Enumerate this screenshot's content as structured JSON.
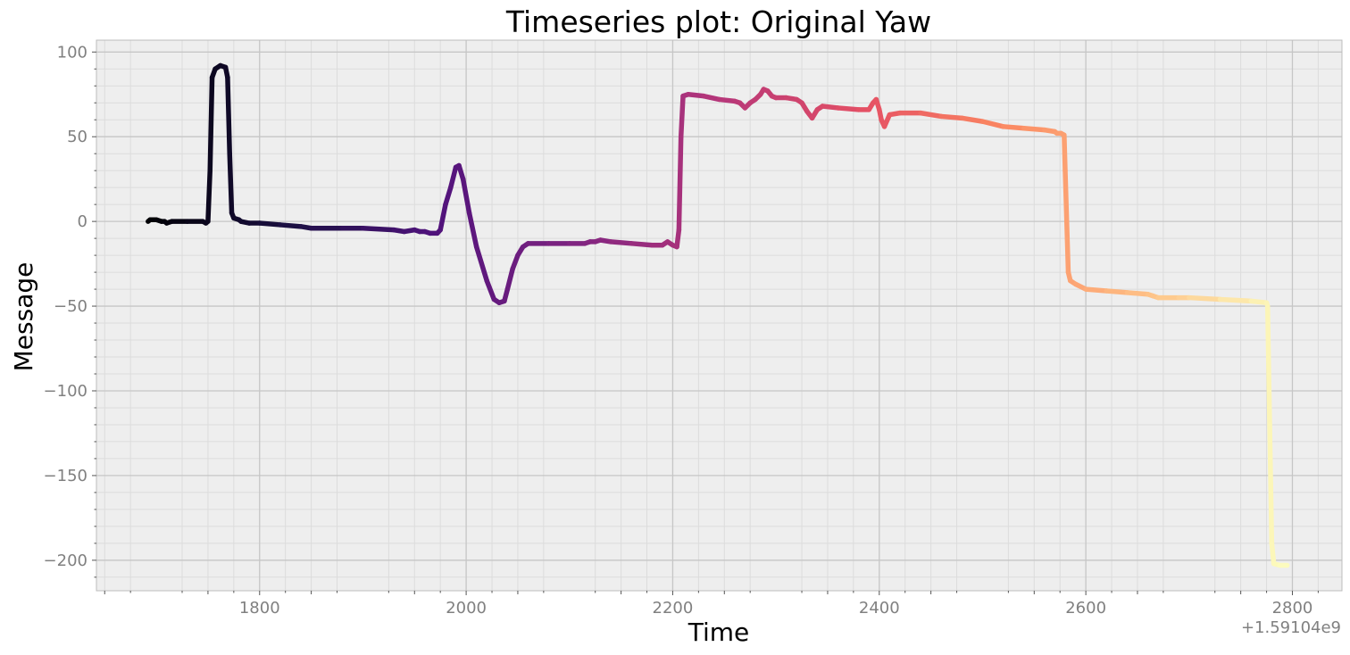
{
  "chart_data": {
    "type": "scatter",
    "title": "Timeseries plot: Original Yaw",
    "xlabel": "Time",
    "ylabel": "Message",
    "x_offset_label": "+1.59104e9",
    "xlim": [
      1642,
      2848
    ],
    "ylim": [
      -218,
      107
    ],
    "x_ticks": [
      1800,
      2000,
      2200,
      2400,
      2600,
      2800
    ],
    "y_ticks": [
      100,
      50,
      0,
      -50,
      -100,
      -150,
      -200
    ],
    "x_tick_labels": [
      "1800",
      "2000",
      "2200",
      "2400",
      "2600",
      "2800"
    ],
    "y_tick_labels": [
      "100",
      "50",
      "0",
      "−50",
      "−100",
      "−150",
      "−200"
    ],
    "grid": true,
    "minor_grid": true,
    "background": "#eeeeee",
    "colormap": "magma",
    "series": [
      {
        "points": [
          [
            1692,
            0
          ],
          [
            1694,
            1
          ],
          [
            1700,
            1
          ],
          [
            1705,
            0
          ],
          [
            1708,
            0
          ],
          [
            1710,
            -1
          ],
          [
            1715,
            0
          ],
          [
            1730,
            0
          ],
          [
            1745,
            0
          ],
          [
            1748,
            -1
          ],
          [
            1750,
            0
          ],
          [
            1752,
            30
          ],
          [
            1754,
            85
          ],
          [
            1757,
            90
          ],
          [
            1762,
            92
          ],
          [
            1767,
            91
          ],
          [
            1769,
            85
          ],
          [
            1771,
            40
          ],
          [
            1773,
            5
          ],
          [
            1775,
            2
          ],
          [
            1780,
            1
          ],
          [
            1782,
            0
          ],
          [
            1790,
            -1
          ],
          [
            1800,
            -1
          ],
          [
            1820,
            -2
          ],
          [
            1840,
            -3
          ],
          [
            1850,
            -4
          ],
          [
            1880,
            -4
          ],
          [
            1900,
            -4
          ],
          [
            1930,
            -5
          ],
          [
            1940,
            -6
          ],
          [
            1950,
            -5
          ],
          [
            1955,
            -6
          ],
          [
            1960,
            -6
          ],
          [
            1965,
            -7
          ],
          [
            1972,
            -7
          ],
          [
            1975,
            -5
          ],
          [
            1980,
            10
          ],
          [
            1985,
            20
          ],
          [
            1990,
            32
          ],
          [
            1993,
            33
          ],
          [
            1997,
            25
          ],
          [
            2003,
            5
          ],
          [
            2010,
            -15
          ],
          [
            2020,
            -35
          ],
          [
            2027,
            -46
          ],
          [
            2032,
            -48
          ],
          [
            2037,
            -47
          ],
          [
            2040,
            -40
          ],
          [
            2045,
            -28
          ],
          [
            2050,
            -20
          ],
          [
            2055,
            -15
          ],
          [
            2060,
            -13
          ],
          [
            2080,
            -13
          ],
          [
            2100,
            -13
          ],
          [
            2115,
            -13
          ],
          [
            2120,
            -12
          ],
          [
            2125,
            -12
          ],
          [
            2130,
            -11
          ],
          [
            2140,
            -12
          ],
          [
            2160,
            -13
          ],
          [
            2180,
            -14
          ],
          [
            2190,
            -14
          ],
          [
            2195,
            -12
          ],
          [
            2200,
            -14
          ],
          [
            2204,
            -15
          ],
          [
            2206,
            -5
          ],
          [
            2208,
            50
          ],
          [
            2210,
            74
          ],
          [
            2215,
            75
          ],
          [
            2230,
            74
          ],
          [
            2245,
            72
          ],
          [
            2260,
            71
          ],
          [
            2265,
            70
          ],
          [
            2270,
            67
          ],
          [
            2275,
            70
          ],
          [
            2280,
            72
          ],
          [
            2285,
            75
          ],
          [
            2288,
            78
          ],
          [
            2292,
            77
          ],
          [
            2296,
            74
          ],
          [
            2300,
            73
          ],
          [
            2310,
            73
          ],
          [
            2320,
            72
          ],
          [
            2325,
            70
          ],
          [
            2330,
            65
          ],
          [
            2335,
            61
          ],
          [
            2340,
            66
          ],
          [
            2345,
            68
          ],
          [
            2360,
            67
          ],
          [
            2380,
            66
          ],
          [
            2390,
            66
          ],
          [
            2394,
            70
          ],
          [
            2397,
            72
          ],
          [
            2400,
            66
          ],
          [
            2402,
            60
          ],
          [
            2405,
            56
          ],
          [
            2410,
            63
          ],
          [
            2420,
            64
          ],
          [
            2440,
            64
          ],
          [
            2460,
            62
          ],
          [
            2480,
            61
          ],
          [
            2500,
            59
          ],
          [
            2520,
            56
          ],
          [
            2540,
            55
          ],
          [
            2560,
            54
          ],
          [
            2570,
            53
          ],
          [
            2572,
            52
          ],
          [
            2576,
            52
          ],
          [
            2579,
            51
          ],
          [
            2580,
            30
          ],
          [
            2582,
            -10
          ],
          [
            2583,
            -30
          ],
          [
            2585,
            -35
          ],
          [
            2590,
            -37
          ],
          [
            2600,
            -40
          ],
          [
            2620,
            -41
          ],
          [
            2640,
            -42
          ],
          [
            2660,
            -43
          ],
          [
            2665,
            -44
          ],
          [
            2670,
            -45
          ],
          [
            2690,
            -45
          ],
          [
            2700,
            -45
          ],
          [
            2730,
            -46
          ],
          [
            2760,
            -47
          ],
          [
            2775,
            -48
          ],
          [
            2776,
            -50
          ],
          [
            2778,
            -120
          ],
          [
            2780,
            -190
          ],
          [
            2782,
            -202
          ],
          [
            2788,
            -203
          ],
          [
            2795,
            -203
          ]
        ]
      }
    ]
  }
}
